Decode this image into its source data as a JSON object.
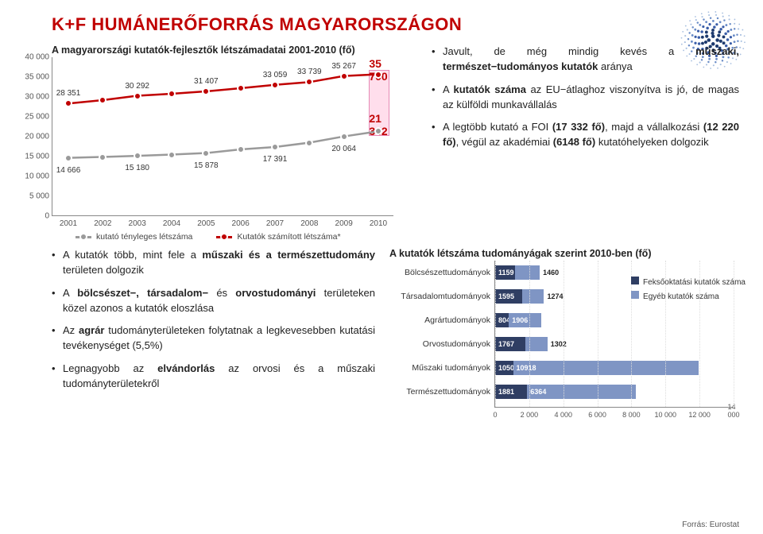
{
  "title": "K+F HUMÁNERŐFORRÁS MAGYARORSZÁGON",
  "line_chart": {
    "title": "A magyarországi kutatók-fejlesztők létszámadatai 2001-2010 (fő)",
    "ylim": [
      0,
      40000
    ],
    "ytick_step": 5000,
    "yticks": [
      "0",
      "5 000",
      "10 000",
      "15 000",
      "20 000",
      "25 000",
      "30 000",
      "35 000",
      "40 000"
    ],
    "xcats": [
      "2001",
      "2002",
      "2003",
      "2004",
      "2005",
      "2006",
      "2007",
      "2008",
      "2009",
      "2010"
    ],
    "series": [
      {
        "name": "kutató tényleges létszáma",
        "color": "#9a9a9a",
        "labels": [
          "14 666",
          "",
          "15 180",
          "",
          "15 878",
          "",
          "17 391",
          "",
          "20 064",
          ""
        ],
        "values": [
          14666,
          14900,
          15180,
          15500,
          15878,
          16800,
          17391,
          18500,
          20064,
          21342
        ]
      },
      {
        "name": "Kutatók számított létszáma*",
        "color": "#c00000",
        "labels": [
          "28 351",
          "",
          "30 292",
          "",
          "31 407",
          "",
          "33 059",
          "33 739",
          "35 267",
          ""
        ],
        "values": [
          28351,
          29200,
          30292,
          30800,
          31407,
          32200,
          33059,
          33739,
          35267,
          35700
        ]
      }
    ],
    "highlight": {
      "top_label": "35 700",
      "bottom_label": "21 342",
      "x_index": 9
    }
  },
  "right_bullets": [
    {
      "html": "Javult, de még mindig kevés a <b>műszaki, természet−tudományos kutatók</b> aránya"
    },
    {
      "html": "A <b>kutatók száma</b> az EU−átlaghoz viszonyítva is jó, de magas az külföldi munkavállalás"
    },
    {
      "html": "A legtöbb kutató a FOI <b>(17 332 fő)</b>, majd a vállalkozási <b>(12 220 fő)</b>, végül az akadémiai <b>(6148 fő)</b> kutatóhelyeken dolgozik"
    }
  ],
  "left_bullets": [
    {
      "html": "A kutatók több, mint fele a <b>műszaki és a természettudomány</b> területen dolgozik"
    },
    {
      "html": "A <b>bölcsészet−, társadalom−</b> és <b>orvostudományi</b> területeken közel azonos a kutatók eloszlása"
    },
    {
      "html": "Az <b>agrár</b> tudományterületeken folytatnak a legkevesebben kutatási tevékenységet (5,5%)"
    },
    {
      "html": "Legnagyobb az <b>elvándorlás</b> az orvosi és a műszaki tudományterületekről"
    }
  ],
  "bar_chart": {
    "title": "A kutatók létszáma tudományágak szerint 2010-ben (fő)",
    "xmax": 14000,
    "xticks": [
      "0",
      "2 000",
      "4 000",
      "6 000",
      "8 000",
      "10 000",
      "12 000",
      "14 000"
    ],
    "series_names": [
      "Feksőoktatási kutatók száma",
      "Egyéb kutatók száma"
    ],
    "colors": [
      "#2f3e63",
      "#7f95c4"
    ],
    "rows": [
      {
        "cat": "Bölcsészettudományok",
        "a": 1159,
        "b": 1460
      },
      {
        "cat": "Társadalomtudományok",
        "a": 1595,
        "b": 1274
      },
      {
        "cat": "Agrártudományok",
        "a": 804,
        "b": 1906
      },
      {
        "cat": "Orvostudományok",
        "a": 1767,
        "b": 1302
      },
      {
        "cat": "Műszaki tudományok",
        "a": 1050,
        "b": 10918
      },
      {
        "cat": "Természettudományok",
        "a": 1881,
        "b": 6364
      }
    ]
  },
  "source": "Forrás: Eurostat",
  "logo_colors": [
    "#1d3a6e",
    "#3a5da8",
    "#6a8cc7",
    "#a9c0e0"
  ]
}
